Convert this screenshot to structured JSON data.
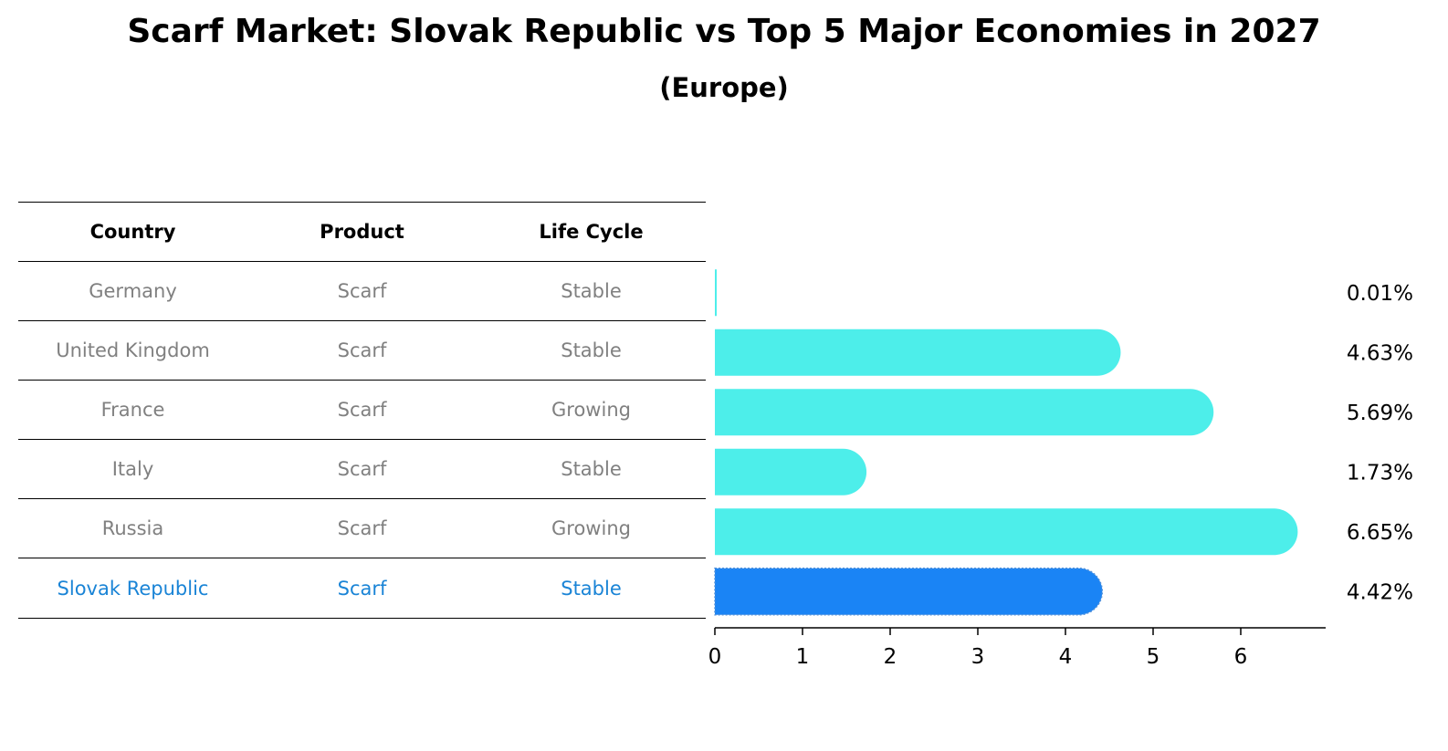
{
  "chart_data": {
    "type": "bar",
    "orientation": "horizontal",
    "title": "Scarf Market: Slovak Republic vs Top 5 Major Economies in 2027",
    "subtitle": "(Europe)",
    "table": {
      "headers": [
        "Country",
        "Product",
        "Life Cycle"
      ],
      "rows": [
        {
          "country": "Germany",
          "product": "Scarf",
          "life_cycle": "Stable"
        },
        {
          "country": "United Kingdom",
          "product": "Scarf",
          "life_cycle": "Stable"
        },
        {
          "country": "France",
          "product": "Scarf",
          "life_cycle": "Growing"
        },
        {
          "country": "Italy",
          "product": "Scarf",
          "life_cycle": "Stable"
        },
        {
          "country": "Russia",
          "product": "Scarf",
          "life_cycle": "Growing"
        },
        {
          "country": "Slovak Republic",
          "product": "Scarf",
          "life_cycle": "Stable"
        }
      ]
    },
    "categories": [
      "Germany",
      "United Kingdom",
      "France",
      "Italy",
      "Russia",
      "Slovak Republic"
    ],
    "values": [
      0.01,
      4.63,
      5.69,
      1.73,
      6.65,
      4.42
    ],
    "value_labels": [
      "0.01%",
      "4.63%",
      "5.69%",
      "1.73%",
      "6.65%",
      "4.42%"
    ],
    "highlight": "Slovak Republic",
    "xlim": [
      0,
      7
    ],
    "xticks": [
      "0",
      "1",
      "2",
      "3",
      "4",
      "5",
      "6"
    ],
    "colors": {
      "bar": "#4deeea",
      "highlight_bar": "#1a84f5",
      "highlight_text": "#1a84d6",
      "muted_text": "#808080"
    }
  }
}
